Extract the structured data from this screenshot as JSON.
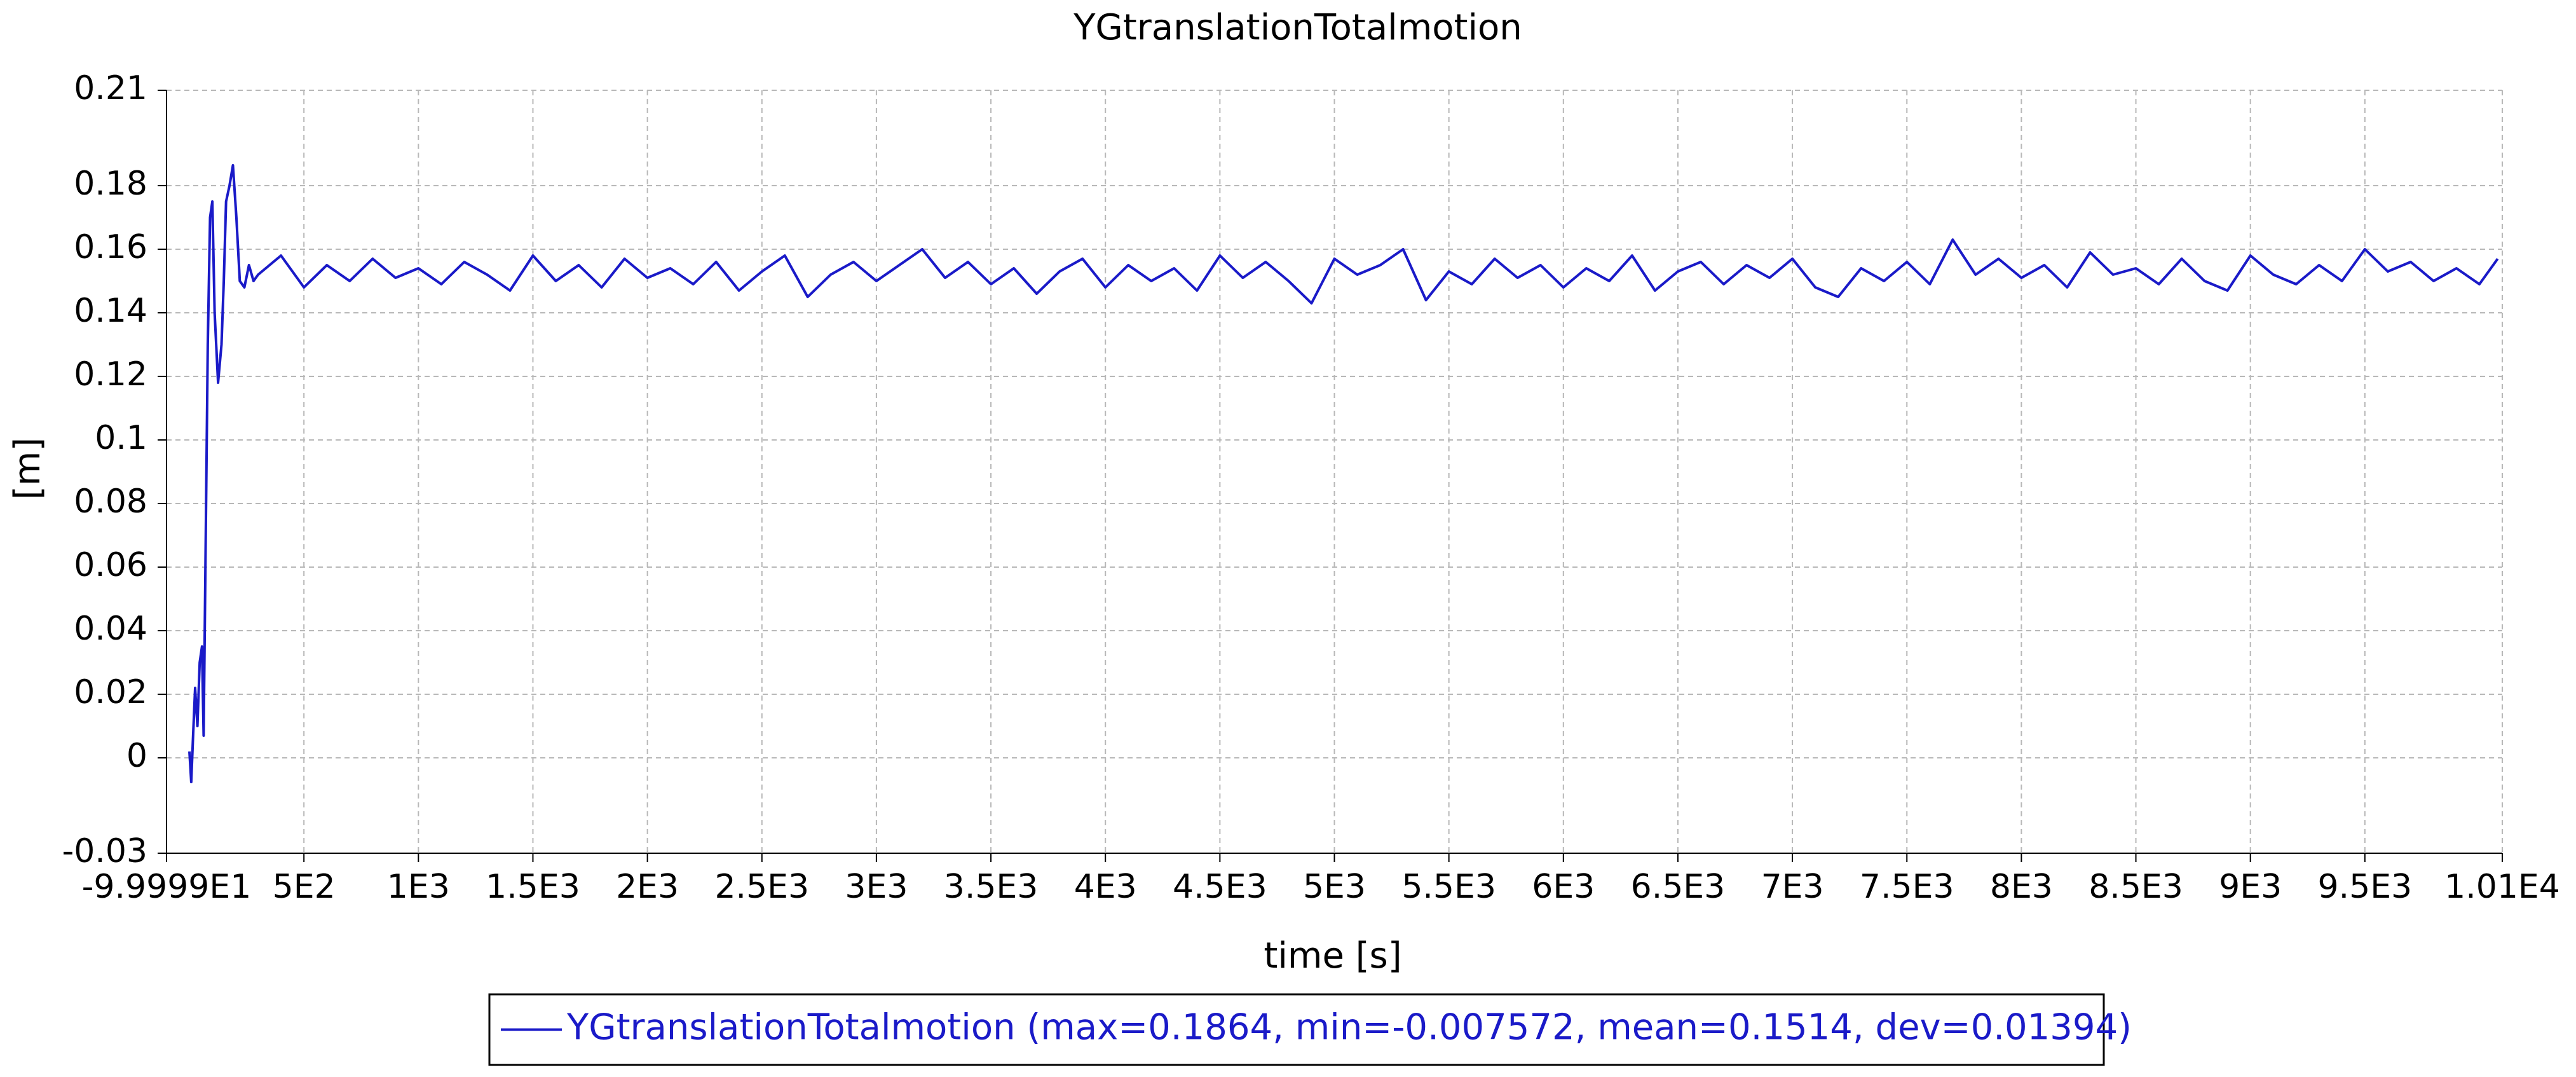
{
  "chart_data": {
    "type": "line",
    "title": "YGtranslationTotalmotion",
    "x_label": "time [s]",
    "y_label": "[m]",
    "xlim": [
      -99.999,
      10100
    ],
    "ylim": [
      -0.03,
      0.21
    ],
    "xticks": [
      {
        "value": -99.999,
        "label": "-9.9999E1"
      },
      {
        "value": 500,
        "label": "5E2"
      },
      {
        "value": 1000,
        "label": "1E3"
      },
      {
        "value": 1500,
        "label": "1.5E3"
      },
      {
        "value": 2000,
        "label": "2E3"
      },
      {
        "value": 2500,
        "label": "2.5E3"
      },
      {
        "value": 3000,
        "label": "3E3"
      },
      {
        "value": 3500,
        "label": "3.5E3"
      },
      {
        "value": 4000,
        "label": "4E3"
      },
      {
        "value": 4500,
        "label": "4.5E3"
      },
      {
        "value": 5000,
        "label": "5E3"
      },
      {
        "value": 5500,
        "label": "5.5E3"
      },
      {
        "value": 6000,
        "label": "6E3"
      },
      {
        "value": 6500,
        "label": "6.5E3"
      },
      {
        "value": 7000,
        "label": "7E3"
      },
      {
        "value": 7500,
        "label": "7.5E3"
      },
      {
        "value": 8000,
        "label": "8E3"
      },
      {
        "value": 8500,
        "label": "8.5E3"
      },
      {
        "value": 9000,
        "label": "9E3"
      },
      {
        "value": 9500,
        "label": "9.5E3"
      },
      {
        "value": 10100,
        "label": "1.01E4"
      }
    ],
    "yticks": [
      -0.03,
      0,
      0.02,
      0.04,
      0.06,
      0.08,
      0.1,
      0.12,
      0.14,
      0.16,
      0.18,
      0.21
    ],
    "grid": true,
    "legend": "bottom",
    "x": [
      0,
      8,
      15,
      25,
      35,
      45,
      55,
      62,
      70,
      80,
      90,
      100,
      110,
      125,
      140,
      150,
      160,
      175,
      190,
      205,
      220,
      240,
      260,
      280,
      300,
      400,
      500,
      600,
      700,
      800,
      900,
      1000,
      1100,
      1200,
      1300,
      1400,
      1500,
      1600,
      1700,
      1800,
      1900,
      2000,
      2100,
      2200,
      2300,
      2400,
      2500,
      2600,
      2700,
      2800,
      2900,
      3000,
      3100,
      3200,
      3300,
      3400,
      3500,
      3600,
      3700,
      3800,
      3900,
      4000,
      4100,
      4200,
      4300,
      4400,
      4500,
      4600,
      4700,
      4800,
      4900,
      5000,
      5100,
      5200,
      5300,
      5400,
      5500,
      5600,
      5700,
      5800,
      5900,
      6000,
      6100,
      6200,
      6300,
      6400,
      6500,
      6600,
      6700,
      6800,
      6900,
      7000,
      7100,
      7200,
      7300,
      7400,
      7500,
      7600,
      7700,
      7800,
      7900,
      8000,
      8100,
      8200,
      8300,
      8400,
      8500,
      8600,
      8700,
      8800,
      8900,
      9000,
      9100,
      9200,
      9300,
      9400,
      9500,
      9600,
      9700,
      9800,
      9900,
      10000,
      10080
    ],
    "series": [
      {
        "name": "YGtranslationTotalmotion (max=0.1864, min=-0.007572, mean=0.1514, dev=0.01394)",
        "color": "#1a1ac8",
        "values": [
          0.002,
          -0.0076,
          0.005,
          0.022,
          0.01,
          0.03,
          0.035,
          0.007,
          0.06,
          0.13,
          0.17,
          0.175,
          0.14,
          0.118,
          0.13,
          0.15,
          0.175,
          0.18,
          0.1864,
          0.17,
          0.15,
          0.148,
          0.155,
          0.15,
          0.152,
          0.158,
          0.148,
          0.155,
          0.15,
          0.157,
          0.151,
          0.154,
          0.149,
          0.156,
          0.152,
          0.147,
          0.158,
          0.15,
          0.155,
          0.148,
          0.157,
          0.151,
          0.154,
          0.149,
          0.156,
          0.147,
          0.153,
          0.158,
          0.145,
          0.152,
          0.156,
          0.15,
          0.155,
          0.16,
          0.151,
          0.156,
          0.149,
          0.154,
          0.146,
          0.153,
          0.157,
          0.148,
          0.155,
          0.15,
          0.154,
          0.147,
          0.158,
          0.151,
          0.156,
          0.15,
          0.143,
          0.157,
          0.152,
          0.155,
          0.16,
          0.144,
          0.153,
          0.149,
          0.157,
          0.151,
          0.155,
          0.148,
          0.154,
          0.15,
          0.158,
          0.147,
          0.153,
          0.156,
          0.149,
          0.155,
          0.151,
          0.157,
          0.148,
          0.145,
          0.154,
          0.15,
          0.156,
          0.149,
          0.163,
          0.152,
          0.157,
          0.151,
          0.155,
          0.148,
          0.159,
          0.152,
          0.154,
          0.149,
          0.157,
          0.15,
          0.147,
          0.158,
          0.152,
          0.149,
          0.155,
          0.15,
          0.16,
          0.153,
          0.156,
          0.15,
          0.154,
          0.149,
          0.157
        ]
      }
    ]
  }
}
